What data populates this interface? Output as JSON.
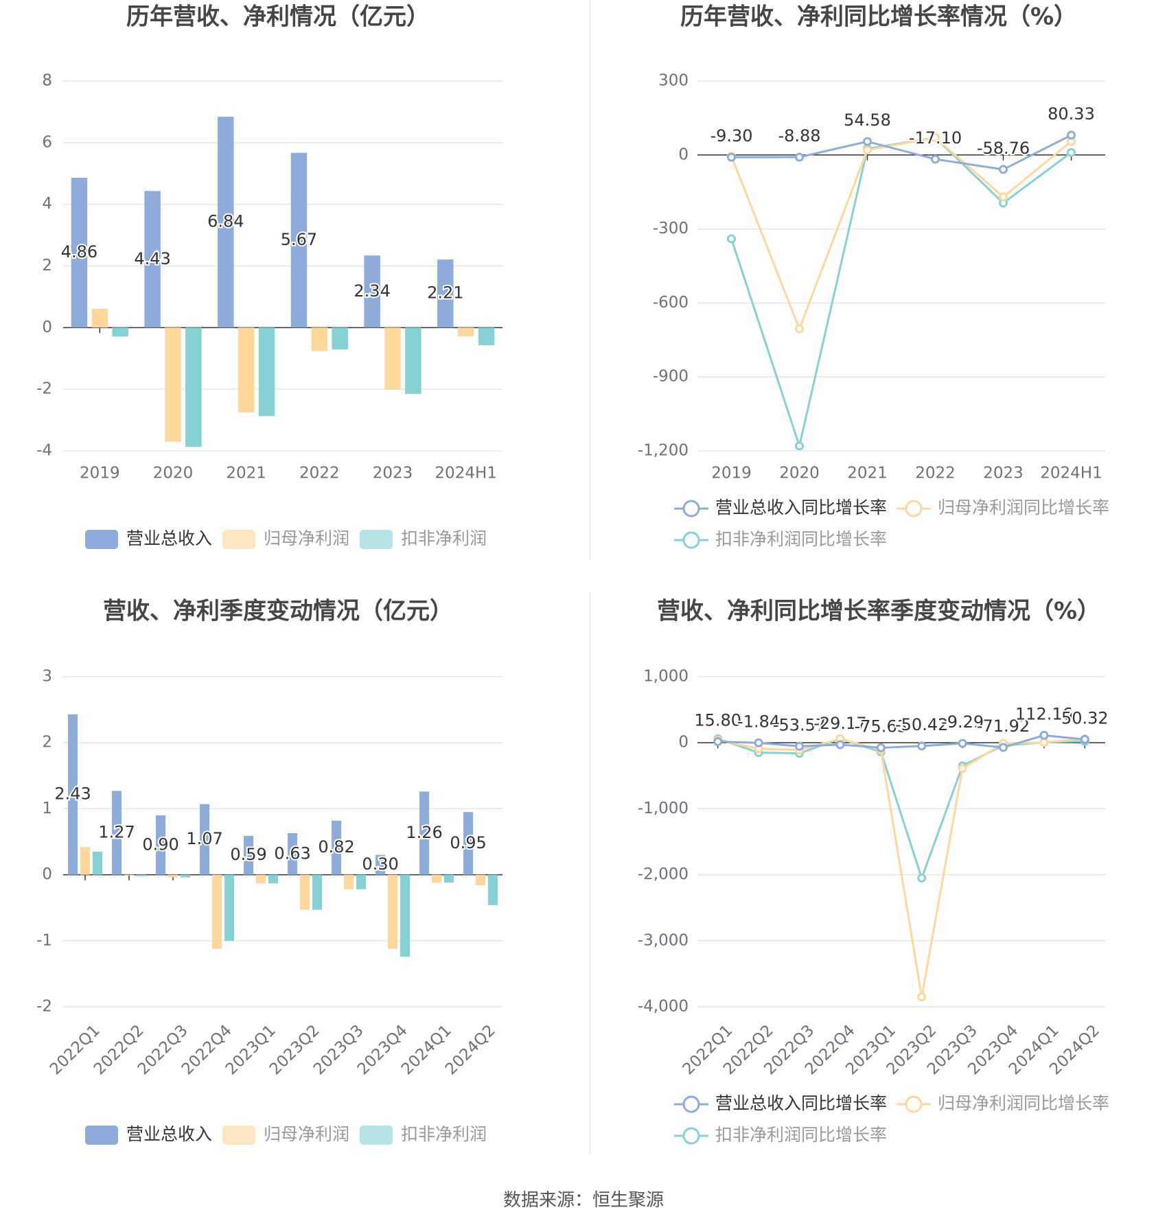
{
  "source_text": "数据来源：恒生聚源",
  "colors": {
    "revenue": "#8dabdb",
    "net_profit": "#fdd89a",
    "deducted_profit": "#85d1d3",
    "grid": "#e4e7ef",
    "axis_text": "#6e7079",
    "title": "#464646"
  },
  "chart_data": [
    {
      "id": "annual-values",
      "type": "bar",
      "title": "历年营收、净利情况（亿元）",
      "categories": [
        "2019",
        "2020",
        "2021",
        "2022",
        "2023",
        "2024H1"
      ],
      "ylim": [
        -4,
        8
      ],
      "yticks": [
        8,
        6,
        4,
        2,
        0,
        -2,
        -4
      ],
      "ytick_labels": [
        "8",
        "6",
        "4",
        "2",
        "0",
        "-2",
        "-4"
      ],
      "grid": true,
      "legend_position": "bottom",
      "series": [
        {
          "name": "营业总收入",
          "color_key": "revenue",
          "values": [
            4.86,
            4.43,
            6.84,
            5.67,
            2.34,
            2.21
          ],
          "labels": [
            "4.86",
            "4.43",
            "6.84",
            "5.67",
            "2.34",
            "2.21"
          ]
        },
        {
          "name": "归母净利润",
          "color_key": "net_profit",
          "values": [
            0.61,
            -3.7,
            -2.75,
            -0.76,
            -2.02,
            -0.28
          ]
        },
        {
          "name": "扣非净利润",
          "color_key": "deducted_profit",
          "values": [
            -0.29,
            -3.87,
            -2.87,
            -0.71,
            -2.15,
            -0.57
          ]
        }
      ]
    },
    {
      "id": "annual-growth",
      "type": "line",
      "title": "历年营收、净利同比增长率情况（%）",
      "categories": [
        "2019",
        "2020",
        "2021",
        "2022",
        "2023",
        "2024H1"
      ],
      "ylim": [
        -1200,
        300
      ],
      "yticks": [
        300,
        0,
        -300,
        -600,
        -900,
        -1200
      ],
      "ytick_labels": [
        "300",
        "0",
        "-300",
        "-600",
        "-900",
        "-1,200"
      ],
      "grid": true,
      "legend_position": "bottom",
      "series": [
        {
          "name": "营业总收入同比增长率",
          "color_key": "revenue",
          "values": [
            -9.3,
            -8.88,
            54.58,
            -17.1,
            -58.76,
            80.33
          ],
          "labels": [
            "-9.30",
            "-8.88",
            "54.58",
            "-17.10",
            "-58.76",
            "80.33"
          ]
        },
        {
          "name": "归母净利润同比增长率",
          "color_key": "net_profit",
          "values": [
            -5,
            -705,
            20,
            70,
            -170,
            55
          ]
        },
        {
          "name": "扣非净利润同比增长率",
          "color_key": "deducted_profit",
          "values": [
            -340,
            -1180,
            25,
            70,
            -195,
            10
          ]
        }
      ]
    },
    {
      "id": "quarterly-values",
      "type": "bar",
      "title": "营收、净利季度变动情况（亿元）",
      "categories": [
        "2022Q1",
        "2022Q2",
        "2022Q3",
        "2022Q4",
        "2023Q1",
        "2023Q2",
        "2023Q3",
        "2023Q4",
        "2024Q1",
        "2024Q2"
      ],
      "ylim": [
        -2,
        3
      ],
      "yticks": [
        3,
        2,
        1,
        0,
        -1,
        -2
      ],
      "ytick_labels": [
        "3",
        "2",
        "1",
        "0",
        "-1",
        "-2"
      ],
      "grid": true,
      "legend_position": "bottom",
      "series": [
        {
          "name": "营业总收入",
          "color_key": "revenue",
          "values": [
            2.43,
            1.27,
            0.9,
            1.07,
            0.59,
            0.63,
            0.82,
            0.3,
            1.26,
            0.95
          ],
          "labels": [
            "2.43",
            "1.27",
            "0.90",
            "1.07",
            "0.59",
            "0.63",
            "0.82",
            "0.30",
            "1.26",
            "0.95"
          ]
        },
        {
          "name": "归母净利润",
          "color_key": "net_profit",
          "values": [
            0.42,
            -0.01,
            -0.04,
            -1.12,
            -0.13,
            -0.53,
            -0.22,
            -1.12,
            -0.12,
            -0.16
          ]
        },
        {
          "name": "扣非净利润",
          "color_key": "deducted_profit",
          "values": [
            0.35,
            -0.02,
            -0.04,
            -1.0,
            -0.13,
            -0.53,
            -0.22,
            -1.24,
            -0.12,
            -0.46
          ]
        }
      ]
    },
    {
      "id": "quarterly-growth",
      "type": "line",
      "title": "营收、净利同比增长率季度变动情况（%）",
      "categories": [
        "2022Q1",
        "2022Q2",
        "2022Q3",
        "2022Q4",
        "2023Q1",
        "2023Q2",
        "2023Q3",
        "2023Q4",
        "2024Q1",
        "2024Q2"
      ],
      "ylim": [
        -4000,
        1000
      ],
      "yticks": [
        1000,
        0,
        -1000,
        -2000,
        -3000,
        -4000
      ],
      "ytick_labels": [
        "1,000",
        "0",
        "-1,000",
        "-2,000",
        "-3,000",
        "-4,000"
      ],
      "grid": true,
      "legend_position": "bottom",
      "series": [
        {
          "name": "营业总收入同比增长率",
          "color_key": "revenue",
          "values": [
            15.8,
            -1.84,
            -53.57,
            -29.17,
            -75.63,
            -50.42,
            -9.29,
            -71.92,
            112.16,
            50.32
          ],
          "labels": [
            "15.80",
            "-1.84",
            "-53.57",
            "-29.17",
            "-75.63",
            "-50.42",
            "-9.29",
            "-71.92",
            "112.16",
            "50.32"
          ]
        },
        {
          "name": "归母净利润同比增长率",
          "color_key": "net_profit",
          "values": [
            40,
            -90,
            -110,
            60,
            -110,
            -3850,
            -390,
            -10,
            5,
            60
          ]
        },
        {
          "name": "扣非净利润同比增长率",
          "color_key": "deducted_profit",
          "values": [
            60,
            -150,
            -160,
            60,
            -140,
            -2050,
            -350,
            -40,
            5,
            20
          ]
        }
      ]
    }
  ]
}
